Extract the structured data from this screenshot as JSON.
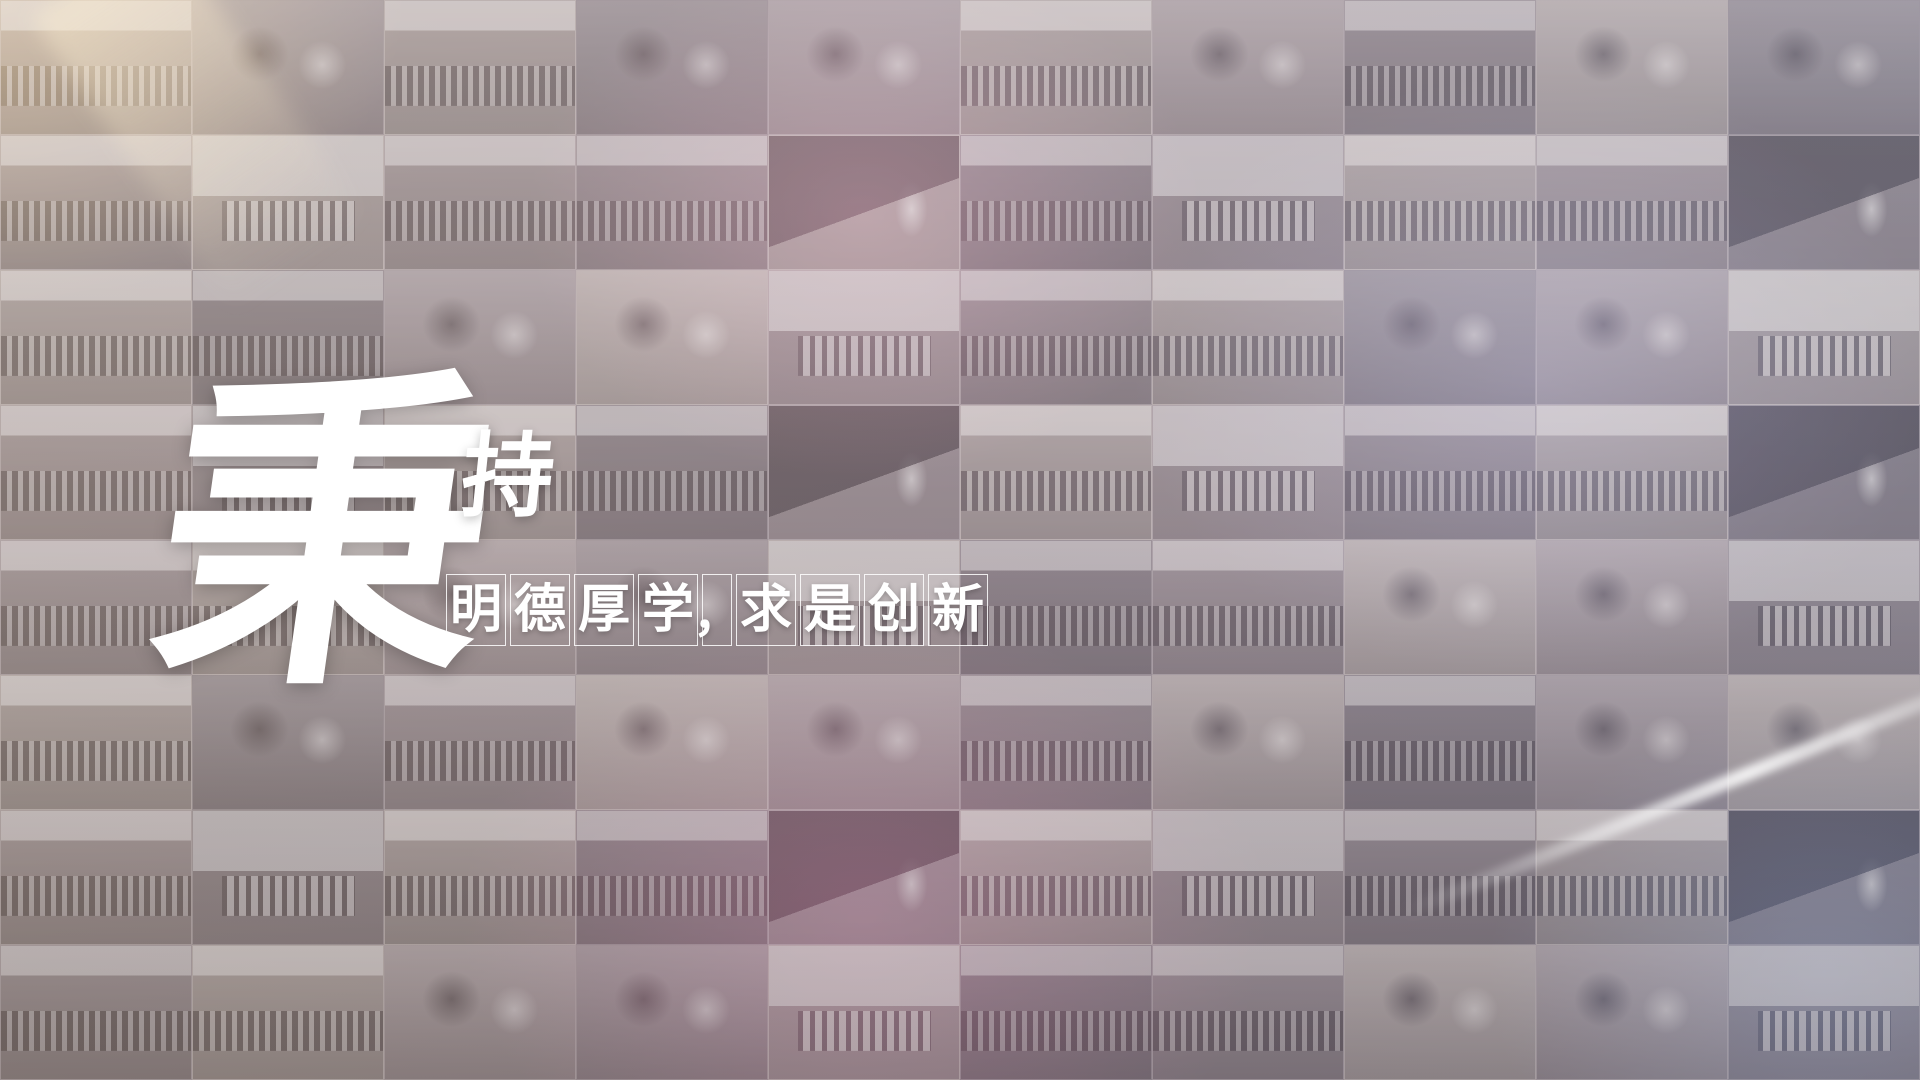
{
  "title": {
    "main_char": "秉",
    "second_char": "持",
    "motto_chars": [
      "明",
      "德",
      "厚",
      "学",
      "，",
      "求",
      "是",
      "创",
      "新"
    ]
  },
  "background": {
    "tile_types": [
      "group",
      "portrait",
      "team",
      "portrait",
      "desk",
      "group",
      "portrait",
      "team",
      "portrait",
      "desk",
      "team",
      "building",
      "team",
      "group",
      "board",
      "team",
      "building",
      "team",
      "group",
      "board",
      "team",
      "team",
      "desk",
      "portrait",
      "building",
      "team",
      "team",
      "desk",
      "portrait",
      "building",
      "team",
      "building",
      "team",
      "group",
      "board",
      "team",
      "building",
      "team",
      "group",
      "board",
      "team",
      "team",
      "desk",
      "portrait",
      "building",
      "team",
      "team",
      "desk",
      "portrait",
      "building",
      "group",
      "portrait",
      "team",
      "portrait",
      "desk",
      "group",
      "portrait",
      "team",
      "portrait",
      "desk",
      "team",
      "building",
      "team",
      "group",
      "board",
      "team",
      "building",
      "team",
      "group",
      "board",
      "team",
      "team",
      "desk",
      "portrait",
      "building",
      "team",
      "team",
      "desk",
      "portrait",
      "building"
    ],
    "accent_colors": [
      "#e6be78",
      "#c87896",
      "#be5a8c",
      "#9696d2",
      "#7896d2"
    ]
  }
}
